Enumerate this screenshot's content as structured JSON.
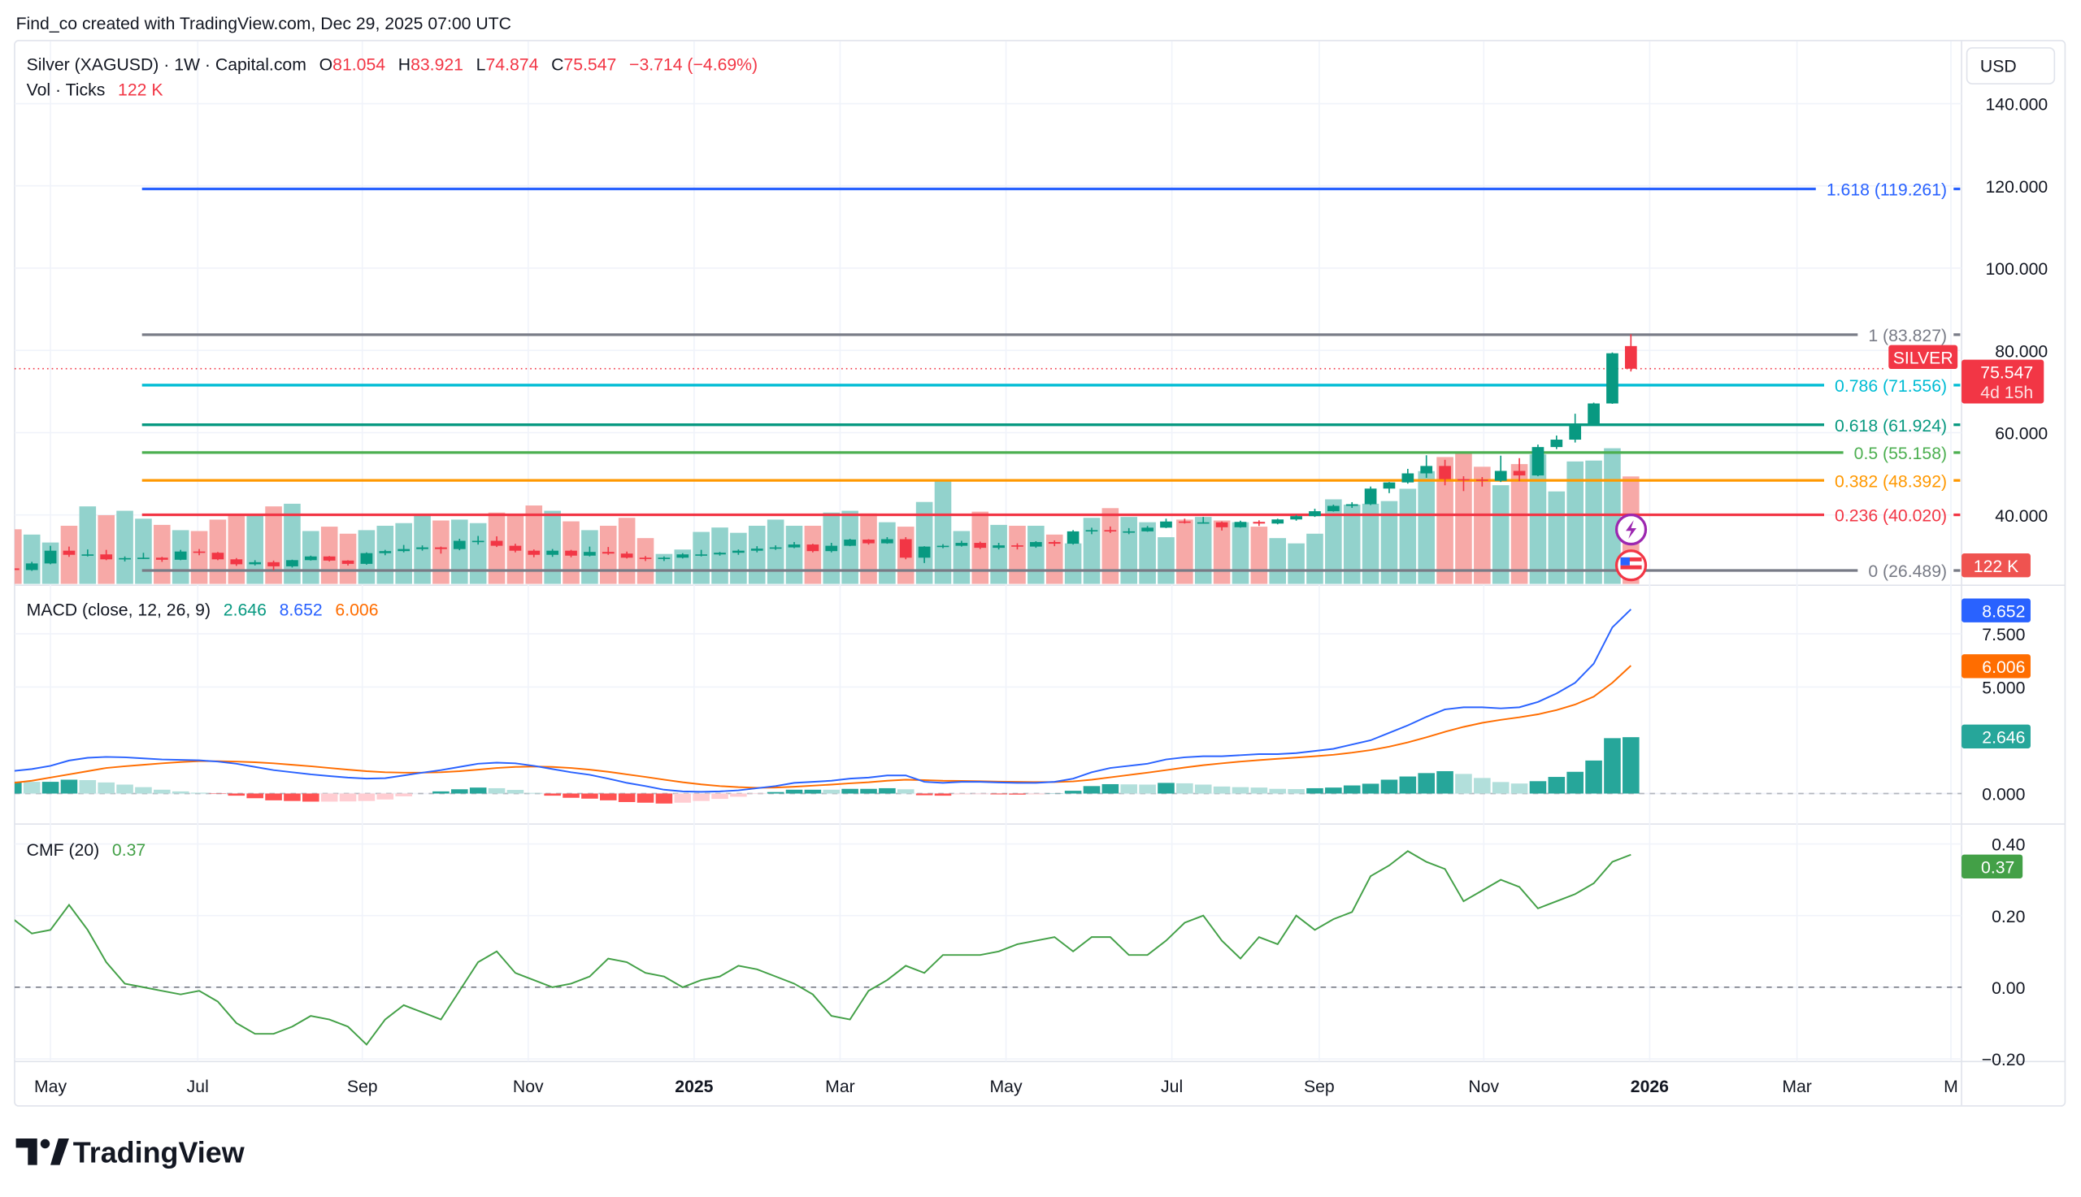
{
  "watermark": "Find_co created with TradingView.com, Dec 29, 2025 07:00 UTC",
  "brand": "TradingView",
  "legend": {
    "symbol": "Silver (XAGUSD) · 1W · Capital.com",
    "o_label": "O",
    "o": "81.054",
    "h_label": "H",
    "h": "83.921",
    "l_label": "L",
    "l": "74.874",
    "c_label": "C",
    "c": "75.547",
    "change": "−3.714 (−4.69%)",
    "vol_label": "Vol · Ticks",
    "vol": "122 K"
  },
  "currency_button": "USD",
  "price_badge": {
    "symbol": "SILVER",
    "price": "75.547",
    "countdown": "4d 15h"
  },
  "volume_badge": "122 K",
  "macd_legend": {
    "label": "MACD (close, 12, 26, 9)",
    "hist": "2.646",
    "macd": "8.652",
    "signal": "6.006"
  },
  "cmf_legend": {
    "label": "CMF (20)",
    "value": "0.37"
  },
  "colors": {
    "up": "#089981",
    "down": "#f23645",
    "macd": "#2962ff",
    "signal": "#ff6d00",
    "cmf": "#43a047"
  },
  "chart_data": [
    {
      "type": "candlestick",
      "interval": "1W",
      "ylim": [
        20,
        150
      ],
      "price_ticks": [
        "140.000",
        "120.000",
        "100.000",
        "80.000",
        "60.000",
        "40.000"
      ],
      "x_ticks": [
        "May",
        "Jul",
        "Sep",
        "Nov",
        "2025",
        "Mar",
        "May",
        "Jul",
        "Sep",
        "Nov",
        "2026",
        "Mar",
        "M"
      ],
      "grid": true,
      "open": [
        27.0,
        26.6,
        28.2,
        31.3,
        30.3,
        30.4,
        29.2,
        29.5,
        29.6,
        29.1,
        31.1,
        30.8,
        29.2,
        28.0,
        28.5,
        27.5,
        29.0,
        29.9,
        28.9,
        28.1,
        30.7,
        31.2,
        31.7,
        32.1,
        31.7,
        33.7,
        33.7,
        32.5,
        31.3,
        30.3,
        31.3,
        30.1,
        31.0,
        30.6,
        29.6,
        29.4,
        29.6,
        30.4,
        30.4,
        30.8,
        31.3,
        31.8,
        32.1,
        32.8,
        31.2,
        32.5,
        34.0,
        33.1,
        34.1,
        29.6,
        32.3,
        32.5,
        33.2,
        32.0,
        32.6,
        32.3,
        33.4,
        33.0,
        36.0,
        36.3,
        36.0,
        36.0,
        36.9,
        38.4,
        38.2,
        38.2,
        37.0,
        38.3,
        37.9,
        38.9,
        39.7,
        40.9,
        42.2,
        42.6,
        46.4,
        47.9,
        50.1,
        51.9,
        48.7,
        48.6,
        48.3,
        50.7,
        49.6,
        56.5,
        58.3,
        61.9,
        67.1,
        81.054
      ],
      "high": [
        27.6,
        28.6,
        32.5,
        32.3,
        31.6,
        31.5,
        29.9,
        30.8,
        29.8,
        31.5,
        31.7,
        31.0,
        29.5,
        29.0,
        28.9,
        29.1,
        30.1,
        30.0,
        29.0,
        30.9,
        31.5,
        32.7,
        32.6,
        32.3,
        34.2,
        34.9,
        34.8,
        33.0,
        31.6,
        31.7,
        31.5,
        32.3,
        32.2,
        31.1,
        30.0,
        29.9,
        30.7,
        31.5,
        31.0,
        31.6,
        32.4,
        32.6,
        33.4,
        33.0,
        33.2,
        34.2,
        34.1,
        34.6,
        34.6,
        32.4,
        32.9,
        33.7,
        33.5,
        33.2,
        33.1,
        33.6,
        33.8,
        36.3,
        36.9,
        37.2,
        36.8,
        37.3,
        39.1,
        39.1,
        39.5,
        38.4,
        38.6,
        38.7,
        39.1,
        40.0,
        41.5,
        42.5,
        43.1,
        46.9,
        48.0,
        51.2,
        54.5,
        53.4,
        49.4,
        49.2,
        54.4,
        53.8,
        57.1,
        59.3,
        64.6,
        67.3,
        79.5,
        83.921
      ],
      "low": [
        26.2,
        26.4,
        28.0,
        29.8,
        29.9,
        29.0,
        28.7,
        29.3,
        28.6,
        29.0,
        30.2,
        29.0,
        27.6,
        27.7,
        26.5,
        27.2,
        28.9,
        28.7,
        27.7,
        27.9,
        30.2,
        30.9,
        31.3,
        30.6,
        31.4,
        32.8,
        32.2,
        30.9,
        29.7,
        29.8,
        29.7,
        29.9,
        30.3,
        29.4,
        28.8,
        28.8,
        29.4,
        29.9,
        30.1,
        30.3,
        30.9,
        31.5,
        31.9,
        30.9,
        30.9,
        32.4,
        32.8,
        33.0,
        29.2,
        28.3,
        31.9,
        32.3,
        31.7,
        31.6,
        31.6,
        32.0,
        32.4,
        32.8,
        35.3,
        35.6,
        35.3,
        35.9,
        36.8,
        37.9,
        37.9,
        36.2,
        36.9,
        37.3,
        37.7,
        38.6,
        39.5,
        40.8,
        41.7,
        42.4,
        45.3,
        47.6,
        49.0,
        47.2,
        45.8,
        46.9,
        48.0,
        48.2,
        49.4,
        56.0,
        57.6,
        61.8,
        67.0,
        74.874
      ],
      "close": [
        26.6,
        28.2,
        31.3,
        30.3,
        30.4,
        29.2,
        29.5,
        29.6,
        29.1,
        31.1,
        30.8,
        29.2,
        28.0,
        28.5,
        27.5,
        29.0,
        29.9,
        28.9,
        28.1,
        30.7,
        31.2,
        31.7,
        32.1,
        31.7,
        33.7,
        33.7,
        32.5,
        31.3,
        30.3,
        31.3,
        30.1,
        31.0,
        30.6,
        29.6,
        29.4,
        29.6,
        30.4,
        30.4,
        30.8,
        31.3,
        31.8,
        32.1,
        32.8,
        31.2,
        32.5,
        34.0,
        33.1,
        34.1,
        29.6,
        32.3,
        32.5,
        33.2,
        32.0,
        32.6,
        32.3,
        33.4,
        33.0,
        36.0,
        36.3,
        36.0,
        36.0,
        36.9,
        38.4,
        38.2,
        38.2,
        37.0,
        38.3,
        37.9,
        38.9,
        39.7,
        40.9,
        42.2,
        42.6,
        46.4,
        47.9,
        50.1,
        51.9,
        48.7,
        48.6,
        48.3,
        50.7,
        49.6,
        56.5,
        58.3,
        61.9,
        67.1,
        79.3,
        75.547
      ],
      "volume_k": [
        62,
        56,
        47,
        66,
        88,
        78,
        83,
        74,
        67,
        61,
        60,
        73,
        77,
        78,
        88,
        91,
        60,
        65,
        57,
        61,
        66,
        69,
        78,
        72,
        73,
        69,
        81,
        78,
        89,
        83,
        71,
        61,
        66,
        75,
        52,
        34,
        39,
        59,
        64,
        58,
        66,
        73,
        66,
        66,
        81,
        83,
        80,
        70,
        65,
        93,
        117,
        60,
        82,
        67,
        66,
        66,
        56,
        46,
        75,
        86,
        76,
        70,
        53,
        73,
        76,
        72,
        70,
        65,
        52,
        46,
        57,
        96,
        90,
        91,
        94,
        108,
        128,
        144,
        150,
        133,
        112,
        136,
        147,
        105,
        139,
        140,
        154,
        122
      ],
      "current_price": 75.547,
      "fib_levels": [
        {
          "ratio": 1.618,
          "value": 119.261,
          "label": "1.618 (119.261)",
          "color": "#2962ff"
        },
        {
          "ratio": 1,
          "value": 83.827,
          "label": "1 (83.827)",
          "color": "#787b86"
        },
        {
          "ratio": 0.786,
          "value": 71.556,
          "label": "0.786 (71.556)",
          "color": "#00bcd4"
        },
        {
          "ratio": 0.618,
          "value": 61.924,
          "label": "0.618 (61.924)",
          "color": "#089981"
        },
        {
          "ratio": 0.5,
          "value": 55.158,
          "label": "0.5 (55.158)",
          "color": "#4caf50"
        },
        {
          "ratio": 0.382,
          "value": 48.392,
          "label": "0.382 (48.392)",
          "color": "#ff9800"
        },
        {
          "ratio": 0.236,
          "value": 40.02,
          "label": "0.236 (40.020)",
          "color": "#f23645"
        },
        {
          "ratio": 0,
          "value": 26.489,
          "label": "0 (26.489)",
          "color": "#787b86"
        }
      ]
    },
    {
      "type": "line",
      "name": "MACD (close, 12, 26, 9)",
      "ticks": [
        "7.500",
        "5.000",
        "0.000"
      ],
      "macd": [
        1.06,
        1.15,
        1.3,
        1.55,
        1.68,
        1.72,
        1.7,
        1.65,
        1.6,
        1.58,
        1.56,
        1.5,
        1.4,
        1.25,
        1.1,
        1.0,
        0.9,
        0.82,
        0.75,
        0.7,
        0.72,
        0.85,
        0.98,
        1.1,
        1.25,
        1.4,
        1.45,
        1.42,
        1.3,
        1.15,
        1.0,
        0.88,
        0.7,
        0.5,
        0.35,
        0.18,
        0.1,
        0.08,
        0.1,
        0.15,
        0.25,
        0.35,
        0.5,
        0.55,
        0.6,
        0.7,
        0.75,
        0.85,
        0.85,
        0.55,
        0.5,
        0.55,
        0.55,
        0.52,
        0.5,
        0.5,
        0.55,
        0.7,
        1.0,
        1.2,
        1.3,
        1.4,
        1.6,
        1.7,
        1.75,
        1.75,
        1.8,
        1.85,
        1.85,
        1.9,
        2.0,
        2.1,
        2.3,
        2.5,
        2.85,
        3.2,
        3.6,
        3.95,
        4.05,
        4.05,
        4.0,
        4.05,
        4.3,
        4.7,
        5.2,
        6.1,
        7.8,
        8.652
      ],
      "signal": [
        0.5,
        0.6,
        0.75,
        0.9,
        1.05,
        1.2,
        1.28,
        1.35,
        1.42,
        1.48,
        1.52,
        1.52,
        1.5,
        1.47,
        1.42,
        1.35,
        1.28,
        1.2,
        1.12,
        1.05,
        1.0,
        0.98,
        0.98,
        1.0,
        1.05,
        1.12,
        1.2,
        1.25,
        1.27,
        1.25,
        1.2,
        1.12,
        1.02,
        0.9,
        0.78,
        0.65,
        0.53,
        0.43,
        0.35,
        0.3,
        0.27,
        0.28,
        0.32,
        0.37,
        0.42,
        0.48,
        0.53,
        0.6,
        0.65,
        0.63,
        0.6,
        0.59,
        0.58,
        0.56,
        0.55,
        0.54,
        0.54,
        0.57,
        0.65,
        0.76,
        0.87,
        0.98,
        1.1,
        1.22,
        1.33,
        1.42,
        1.5,
        1.57,
        1.63,
        1.69,
        1.75,
        1.82,
        1.92,
        2.04,
        2.2,
        2.4,
        2.64,
        2.9,
        3.13,
        3.32,
        3.46,
        3.58,
        3.72,
        3.92,
        4.18,
        4.55,
        5.2,
        6.006
      ]
    },
    {
      "type": "line",
      "name": "CMF (20)",
      "ticks": [
        "0.40",
        "0.20",
        "0.00",
        "−0.20"
      ],
      "values": [
        0.19,
        0.15,
        0.16,
        0.23,
        0.16,
        0.07,
        0.01,
        0.0,
        -0.01,
        -0.02,
        -0.01,
        -0.04,
        -0.1,
        -0.13,
        -0.13,
        -0.11,
        -0.08,
        -0.09,
        -0.11,
        -0.16,
        -0.09,
        -0.05,
        -0.07,
        -0.09,
        -0.01,
        0.07,
        0.1,
        0.04,
        0.02,
        0.0,
        0.01,
        0.03,
        0.08,
        0.07,
        0.04,
        0.03,
        0.0,
        0.02,
        0.03,
        0.06,
        0.05,
        0.03,
        0.01,
        -0.02,
        -0.08,
        -0.09,
        -0.01,
        0.02,
        0.06,
        0.04,
        0.09,
        0.09,
        0.09,
        0.1,
        0.12,
        0.13,
        0.14,
        0.1,
        0.14,
        0.14,
        0.09,
        0.09,
        0.13,
        0.18,
        0.2,
        0.13,
        0.08,
        0.14,
        0.12,
        0.2,
        0.16,
        0.19,
        0.21,
        0.31,
        0.34,
        0.38,
        0.35,
        0.33,
        0.24,
        0.27,
        0.3,
        0.28,
        0.22,
        0.24,
        0.26,
        0.29,
        0.35,
        0.37
      ]
    }
  ]
}
